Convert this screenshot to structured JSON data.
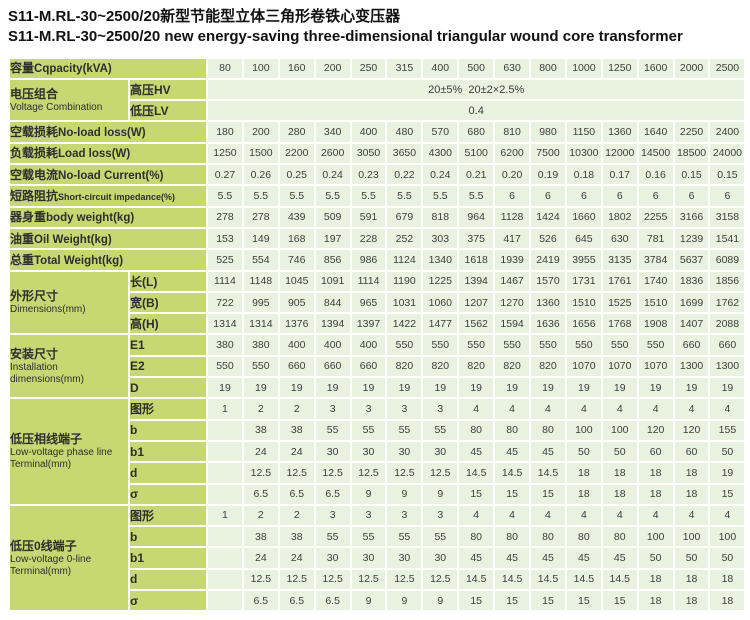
{
  "title": {
    "line1_zh": "S11-M.RL-30~2500/20新型节能型立体三角形卷铁心变压器",
    "line2_en": "S11-M.RL-30~2500/20 new energy-saving three-dimensional triangular wound core transformer"
  },
  "colors": {
    "label_bg": "#c7d873",
    "data_bg": "#e9f2df",
    "grid": "#ffffff",
    "text": "#3d3d3d"
  },
  "table": {
    "capacities": [
      "80",
      "100",
      "160",
      "200",
      "250",
      "315",
      "400",
      "500",
      "630",
      "800",
      "1000",
      "1250",
      "1600",
      "2000",
      "2500"
    ],
    "sections": [
      {
        "kind": "single",
        "key": "capacity",
        "label_zh": "容量",
        "label_en": "Cqpacity(kVA)",
        "cells": [
          "80",
          "100",
          "160",
          "200",
          "250",
          "315",
          "400",
          "500",
          "630",
          "800",
          "1000",
          "1250",
          "1600",
          "2000",
          "2500"
        ]
      },
      {
        "kind": "group",
        "key": "voltage",
        "label_zh": "电压组合",
        "label_en": "Voltage Combination",
        "rows": [
          {
            "sub": "高压HV",
            "span_text": "20±5%  20±2×2.5%"
          },
          {
            "sub": "低压LV",
            "span_text": "0.4"
          }
        ]
      },
      {
        "kind": "single",
        "key": "no-load-loss",
        "label_zh": "空载损耗",
        "label_en": "No-load loss(W)",
        "cells": [
          "180",
          "200",
          "280",
          "340",
          "400",
          "480",
          "570",
          "680",
          "810",
          "980",
          "1150",
          "1360",
          "1640",
          "2250",
          "2400"
        ]
      },
      {
        "kind": "single",
        "key": "load-loss",
        "label_zh": "负载损耗",
        "label_en": "Load loss(W)",
        "cells": [
          "1250",
          "1500",
          "2200",
          "2600",
          "3050",
          "3650",
          "4300",
          "5100",
          "6200",
          "7500",
          "10300",
          "12000",
          "14500",
          "18500",
          "24000"
        ]
      },
      {
        "kind": "single",
        "key": "no-load-current",
        "label_zh": "空载电流",
        "label_en": "No-load Current(%)",
        "cells": [
          "0.27",
          "0.26",
          "0.25",
          "0.24",
          "0.23",
          "0.22",
          "0.24",
          "0.21",
          "0.20",
          "0.19",
          "0.18",
          "0.17",
          "0.16",
          "0.15",
          "0.15"
        ]
      },
      {
        "kind": "single",
        "key": "impedance",
        "en_small": true,
        "label_zh": "短路阻抗",
        "label_en": "Short-circuit impedance(%)",
        "cells": [
          "5.5",
          "5.5",
          "5.5",
          "5.5",
          "5.5",
          "5.5",
          "5.5",
          "5.5",
          "6",
          "6",
          "6",
          "6",
          "6",
          "6",
          "6"
        ]
      },
      {
        "kind": "single",
        "key": "body-weight",
        "label_zh": "器身重",
        "label_en": "body weight(kg)",
        "cells": [
          "278",
          "278",
          "439",
          "509",
          "591",
          "679",
          "818",
          "964",
          "1128",
          "1424",
          "1660",
          "1802",
          "2255",
          "3166",
          "3158"
        ]
      },
      {
        "kind": "single",
        "key": "oil-weight",
        "label_zh": "油重",
        "label_en": "Oil Weight(kg)",
        "cells": [
          "153",
          "149",
          "168",
          "197",
          "228",
          "252",
          "303",
          "375",
          "417",
          "526",
          "645",
          "630",
          "781",
          "1239",
          "1541"
        ]
      },
      {
        "kind": "single",
        "key": "total-weight",
        "label_zh": "总重",
        "label_en": "Total Weight(kg)",
        "cells": [
          "525",
          "554",
          "746",
          "856",
          "986",
          "1124",
          "1340",
          "1618",
          "1939",
          "2419",
          "3955",
          "3135",
          "3784",
          "5637",
          "6089"
        ]
      },
      {
        "kind": "group",
        "key": "dimensions",
        "label_zh": "外形尺寸",
        "label_en": "Dimensions(mm)",
        "rows": [
          {
            "sub": "长(L)",
            "cells": [
              "1114",
              "1148",
              "1045",
              "1091",
              "1114",
              "1190",
              "1225",
              "1394",
              "1467",
              "1570",
              "1731",
              "1761",
              "1740",
              "1836",
              "1856"
            ]
          },
          {
            "sub": "宽(B)",
            "cells": [
              "722",
              "995",
              "905",
              "844",
              "965",
              "1031",
              "1060",
              "1207",
              "1270",
              "1360",
              "1510",
              "1525",
              "1510",
              "1699",
              "1762"
            ]
          },
          {
            "sub": "高(H)",
            "cells": [
              "1314",
              "1314",
              "1376",
              "1394",
              "1397",
              "1422",
              "1477",
              "1562",
              "1594",
              "1636",
              "1656",
              "1768",
              "1908",
              "1407",
              "2088"
            ]
          }
        ]
      },
      {
        "kind": "group",
        "key": "installation",
        "label_zh": "安装尺寸",
        "label_en": "Installation dimensions(mm)",
        "rows": [
          {
            "sub": "E1",
            "cells": [
              "380",
              "380",
              "400",
              "400",
              "400",
              "550",
              "550",
              "550",
              "550",
              "550",
              "550",
              "550",
              "550",
              "660",
              "660"
            ]
          },
          {
            "sub": "E2",
            "cells": [
              "550",
              "550",
              "660",
              "660",
              "660",
              "820",
              "820",
              "820",
              "820",
              "820",
              "1070",
              "1070",
              "1070",
              "1300",
              "1300"
            ]
          },
          {
            "sub": "D",
            "cells": [
              "19",
              "19",
              "19",
              "19",
              "19",
              "19",
              "19",
              "19",
              "19",
              "19",
              "19",
              "19",
              "19",
              "19",
              "19"
            ]
          }
        ]
      },
      {
        "kind": "group",
        "key": "phase-terminal",
        "label_zh": "低压相线端子",
        "label_en": "Low-voltage phase line Terminal(mm)",
        "rows": [
          {
            "sub": "图形",
            "cells": [
              "1",
              "2",
              "2",
              "3",
              "3",
              "3",
              "3",
              "4",
              "4",
              "4",
              "4",
              "4",
              "4",
              "4",
              "4"
            ]
          },
          {
            "sub": "b",
            "cells": [
              "",
              "38",
              "38",
              "55",
              "55",
              "55",
              "55",
              "80",
              "80",
              "80",
              "100",
              "100",
              "120",
              "120",
              "155"
            ]
          },
          {
            "sub": "b1",
            "cells": [
              "",
              "24",
              "24",
              "30",
              "30",
              "30",
              "30",
              "45",
              "45",
              "45",
              "50",
              "50",
              "60",
              "60",
              "50"
            ]
          },
          {
            "sub": "d",
            "cells": [
              "",
              "12.5",
              "12.5",
              "12.5",
              "12.5",
              "12.5",
              "12.5",
              "14.5",
              "14.5",
              "14.5",
              "18",
              "18",
              "18",
              "18",
              "19"
            ]
          },
          {
            "sub": "σ",
            "cells": [
              "",
              "6.5",
              "6.5",
              "6.5",
              "9",
              "9",
              "9",
              "15",
              "15",
              "15",
              "18",
              "18",
              "18",
              "18",
              "15"
            ]
          }
        ]
      },
      {
        "kind": "group",
        "key": "zero-terminal",
        "label_zh": "低压0线端子",
        "label_en": "Low-voltage 0-line Terminal(mm)",
        "rows": [
          {
            "sub": "图形",
            "cells": [
              "1",
              "2",
              "2",
              "3",
              "3",
              "3",
              "3",
              "4",
              "4",
              "4",
              "4",
              "4",
              "4",
              "4",
              "4"
            ]
          },
          {
            "sub": "b",
            "cells": [
              "",
              "38",
              "38",
              "55",
              "55",
              "55",
              "55",
              "80",
              "80",
              "80",
              "80",
              "80",
              "100",
              "100",
              "100"
            ]
          },
          {
            "sub": "b1",
            "cells": [
              "",
              "24",
              "24",
              "30",
              "30",
              "30",
              "30",
              "45",
              "45",
              "45",
              "45",
              "45",
              "50",
              "50",
              "50"
            ]
          },
          {
            "sub": "d",
            "cells": [
              "",
              "12.5",
              "12.5",
              "12.5",
              "12.5",
              "12.5",
              "12.5",
              "14.5",
              "14.5",
              "14.5",
              "14.5",
              "14.5",
              "18",
              "18",
              "18"
            ]
          },
          {
            "sub": "σ",
            "cells": [
              "",
              "6.5",
              "6.5",
              "6.5",
              "9",
              "9",
              "9",
              "15",
              "15",
              "15",
              "15",
              "15",
              "18",
              "18",
              "18"
            ]
          }
        ]
      }
    ]
  }
}
